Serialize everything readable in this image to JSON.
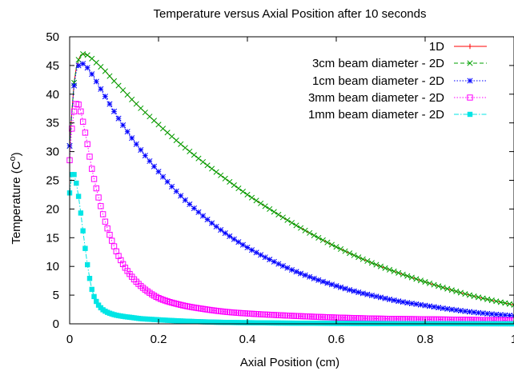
{
  "chart_data": {
    "type": "line",
    "title": "Temperature versus Axial Position after 10 seconds",
    "xlabel": "Axial Position (cm)",
    "ylabel": "Temperature (C",
    "ylabel_sup": "o",
    "ylabel_close": ")",
    "xlim": [
      0,
      1
    ],
    "ylim": [
      0,
      50
    ],
    "xticks": [
      0,
      0.2,
      0.4,
      0.6,
      0.8,
      1
    ],
    "xtick_labels": [
      "0",
      "0.2",
      "0.4",
      "0.6",
      "0.8",
      "1"
    ],
    "yticks": [
      0,
      5,
      10,
      15,
      20,
      25,
      30,
      35,
      40,
      45,
      50
    ],
    "ytick_labels": [
      "0",
      "5",
      "10",
      "15",
      "20",
      "25",
      "30",
      "35",
      "40",
      "45",
      "50"
    ],
    "grid": false,
    "legend_position": "top-right",
    "series": [
      {
        "name": "1D",
        "color": "#ff0000",
        "marker": "plus",
        "dash": "solid",
        "x": [
          0,
          0.01,
          0.02,
          0.03,
          0.04,
          0.05,
          0.06,
          0.08,
          0.1,
          0.12,
          0.15,
          0.2,
          0.25,
          0.3,
          0.35,
          0.4,
          0.45,
          0.5,
          0.55,
          0.6,
          0.65,
          0.7,
          0.75,
          0.8,
          0.85,
          0.9,
          0.95,
          1.0
        ],
        "values": [
          31.0,
          42.0,
          46.0,
          47.0,
          46.8,
          46.2,
          45.5,
          44.0,
          42.3,
          40.7,
          38.3,
          34.7,
          31.3,
          28.2,
          25.3,
          22.5,
          20.0,
          17.6,
          15.4,
          13.4,
          11.6,
          10.0,
          8.6,
          7.3,
          6.1,
          5.0,
          4.1,
          3.3
        ]
      },
      {
        "name": "3cm beam diameter - 2D",
        "color": "#00a000",
        "marker": "x",
        "dash": "dashed",
        "x": [
          0,
          0.01,
          0.02,
          0.03,
          0.04,
          0.05,
          0.06,
          0.08,
          0.1,
          0.12,
          0.15,
          0.2,
          0.25,
          0.3,
          0.35,
          0.4,
          0.45,
          0.5,
          0.55,
          0.6,
          0.65,
          0.7,
          0.75,
          0.8,
          0.85,
          0.9,
          0.95,
          1.0
        ],
        "values": [
          31.0,
          42.0,
          46.0,
          47.0,
          46.8,
          46.2,
          45.5,
          44.0,
          42.3,
          40.7,
          38.3,
          34.7,
          31.3,
          28.2,
          25.3,
          22.5,
          20.0,
          17.6,
          15.4,
          13.4,
          11.6,
          10.0,
          8.6,
          7.3,
          6.1,
          5.0,
          4.1,
          3.3
        ]
      },
      {
        "name": "1cm beam diameter - 2D",
        "color": "#0000ff",
        "marker": "star",
        "dash": "dotted",
        "x": [
          0,
          0.01,
          0.02,
          0.03,
          0.04,
          0.05,
          0.06,
          0.08,
          0.1,
          0.12,
          0.15,
          0.2,
          0.25,
          0.3,
          0.35,
          0.4,
          0.45,
          0.5,
          0.55,
          0.6,
          0.65,
          0.7,
          0.75,
          0.8,
          0.85,
          0.9,
          0.95,
          1.0
        ],
        "values": [
          31.0,
          41.5,
          45.0,
          45.3,
          44.6,
          43.5,
          42.2,
          39.6,
          37.0,
          34.6,
          31.3,
          26.5,
          22.3,
          18.8,
          15.8,
          13.3,
          11.2,
          9.4,
          7.9,
          6.6,
          5.5,
          4.6,
          3.8,
          3.2,
          2.6,
          2.1,
          1.7,
          1.4
        ]
      },
      {
        "name": "3mm beam diameter - 2D",
        "color": "#ff00ff",
        "marker": "square-open",
        "dash": "dotted",
        "x": [
          0,
          0.005,
          0.01,
          0.015,
          0.02,
          0.025,
          0.03,
          0.04,
          0.05,
          0.06,
          0.07,
          0.08,
          0.1,
          0.12,
          0.14,
          0.16,
          0.18,
          0.2,
          0.25,
          0.3,
          0.35,
          0.4,
          0.5,
          0.6,
          0.7,
          0.8,
          0.9,
          1.0
        ],
        "values": [
          28.5,
          34.0,
          37.0,
          38.3,
          38.2,
          37.0,
          35.2,
          31.3,
          27.0,
          23.6,
          20.5,
          17.8,
          13.5,
          10.4,
          8.2,
          6.6,
          5.4,
          4.5,
          3.3,
          2.6,
          2.1,
          1.8,
          1.4,
          1.1,
          0.9,
          0.8,
          0.7,
          0.6
        ]
      },
      {
        "name": "1mm beam diameter - 2D",
        "color": "#00e5e5",
        "marker": "square-filled",
        "dash": "dashdot",
        "x": [
          0,
          0.005,
          0.01,
          0.015,
          0.02,
          0.025,
          0.03,
          0.04,
          0.05,
          0.06,
          0.07,
          0.08,
          0.1,
          0.12,
          0.14,
          0.16,
          0.18,
          0.2,
          0.25,
          0.3,
          0.35,
          0.4,
          0.5,
          0.6,
          0.7,
          0.8,
          0.9,
          1.0
        ],
        "values": [
          22.8,
          26.0,
          26.0,
          24.5,
          22.2,
          19.3,
          16.2,
          10.3,
          6.0,
          3.9,
          2.8,
          2.2,
          1.6,
          1.3,
          1.1,
          0.9,
          0.8,
          0.7,
          0.5,
          0.35,
          0.25,
          0.2,
          0.12,
          0.08,
          0.05,
          0.03,
          0.02,
          0.01
        ]
      }
    ]
  }
}
